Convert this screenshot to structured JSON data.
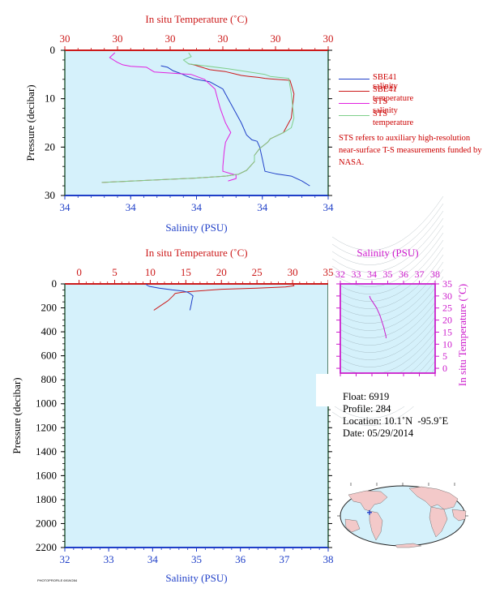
{
  "chart_data": [
    {
      "id": "upper",
      "type": "line",
      "top_axis_label": "In situ Temperature (˚C)",
      "top_ticks": [
        "30",
        "30",
        "30",
        "30",
        "30",
        "30"
      ],
      "bottom_axis_label": "Salinity (PSU)",
      "bottom_ticks": [
        "34",
        "34",
        "34",
        "34",
        "34"
      ],
      "ylabel": "Pressure (decibar)",
      "y_ticks": [
        "0",
        "10",
        "20",
        "30"
      ],
      "ylim": [
        30,
        0
      ],
      "xlim_fraction": [
        0,
        1
      ],
      "series": [
        {
          "name": "SBE41 salinity",
          "axis": "bottom",
          "color": "#1f3fc8",
          "x": [
            0.365,
            0.39,
            0.41,
            0.44,
            0.46,
            0.49,
            0.55,
            0.6,
            0.62,
            0.65,
            0.67,
            0.69,
            0.71,
            0.73,
            0.74,
            0.75,
            0.76,
            0.8,
            0.86,
            0.9,
            0.93
          ],
          "y": [
            3.2,
            3.5,
            4.2,
            4.8,
            5.3,
            5.9,
            6.5,
            8.0,
            10.0,
            13.0,
            15.0,
            17.5,
            18.5,
            18.8,
            20.0,
            22.5,
            25.0,
            25.5,
            26.0,
            27.0,
            28.0
          ]
        },
        {
          "name": "SBE41 temperature",
          "axis": "top",
          "color": "#cc1a1a",
          "x": [
            0.47,
            0.49,
            0.52,
            0.55,
            0.58,
            0.61,
            0.64,
            0.67,
            0.7,
            0.735,
            0.76,
            0.78,
            0.855,
            0.87,
            0.86,
            0.83,
            0.78,
            0.77,
            0.74,
            0.72,
            0.72,
            0.69,
            0.66,
            0.61,
            0.5,
            0.3,
            0.14
          ],
          "y": [
            2.8,
            3.0,
            3.5,
            4.0,
            4.2,
            4.4,
            4.8,
            5.2,
            5.4,
            5.6,
            5.8,
            5.9,
            6.2,
            9.0,
            14.0,
            17.0,
            18.3,
            19.0,
            20.3,
            21.7,
            23.0,
            24.8,
            25.6,
            26.0,
            26.4,
            26.9,
            27.3
          ]
        },
        {
          "name": "STS salinity",
          "axis": "bottom",
          "color": "#e21fe0",
          "x": [
            0.19,
            0.17,
            0.2,
            0.22,
            0.25,
            0.31,
            0.34,
            0.48,
            0.53,
            0.57,
            0.58,
            0.59,
            0.6,
            0.61,
            0.62,
            0.63,
            0.61,
            0.605,
            0.6,
            0.6,
            0.65,
            0.65,
            0.62
          ],
          "y": [
            0.5,
            1.5,
            2.5,
            3.0,
            3.3,
            3.5,
            4.5,
            5.0,
            6.0,
            8.0,
            10.0,
            12.0,
            13.5,
            15.0,
            16.0,
            17.0,
            19.0,
            21.0,
            24.0,
            25.0,
            25.8,
            26.5,
            27.0
          ]
        },
        {
          "name": "STS temperature",
          "axis": "top",
          "color": "#7fcf8a",
          "x": [
            0.47,
            0.48,
            0.45,
            0.47,
            0.53,
            0.62,
            0.69,
            0.76,
            0.78,
            0.85,
            0.86,
            0.87,
            0.86,
            0.83,
            0.78,
            0.77,
            0.74,
            0.72,
            0.72,
            0.69,
            0.66,
            0.61,
            0.5,
            0.3,
            0.14
          ],
          "y": [
            0.5,
            1.3,
            2.0,
            2.8,
            3.2,
            3.8,
            4.4,
            5.0,
            5.4,
            5.8,
            9.0,
            14.0,
            16.0,
            17.0,
            18.3,
            19.0,
            20.3,
            21.7,
            23.0,
            24.8,
            25.6,
            26.0,
            26.4,
            26.9,
            27.3
          ]
        }
      ]
    },
    {
      "id": "lower",
      "type": "line",
      "top_axis_label": "In situ Temperature (˚C)",
      "top_ticks": [
        "0",
        "5",
        "10",
        "15",
        "20",
        "25",
        "30",
        "35"
      ],
      "xlim_top": [
        -2,
        35
      ],
      "bottom_axis_label": "Salinity (PSU)",
      "bottom_ticks": [
        "32",
        "33",
        "34",
        "35",
        "36",
        "37",
        "38"
      ],
      "xlim_bottom": [
        32,
        38
      ],
      "ylabel": "Pressure (decibar)",
      "y_ticks": [
        "0",
        "200",
        "400",
        "600",
        "800",
        "1000",
        "1200",
        "1400",
        "1600",
        "1800",
        "2000",
        "2200"
      ],
      "ylim": [
        2200,
        0
      ],
      "series": [
        {
          "name": "temperature",
          "axis": "top",
          "color": "#cc1a1a",
          "x": [
            30.0,
            30.2,
            29.0,
            25.0,
            20.0,
            16.5,
            14.5,
            13.5,
            13.2,
            12.5,
            11.5,
            10.5
          ],
          "y": [
            0,
            15,
            25,
            35,
            45,
            60,
            70,
            80,
            100,
            140,
            180,
            220
          ]
        },
        {
          "name": "salinity",
          "axis": "bottom",
          "color": "#1f3fc8",
          "x": [
            33.85,
            33.87,
            33.92,
            34.15,
            34.45,
            34.7,
            34.8,
            34.87,
            34.92,
            34.9,
            34.88,
            34.85
          ],
          "y": [
            0,
            10,
            20,
            35,
            50,
            60,
            70,
            85,
            100,
            130,
            170,
            220
          ]
        }
      ]
    },
    {
      "id": "ts-diagram",
      "type": "scatter",
      "top_axis_label": "Salinity (PSU)",
      "x_ticks": [
        "32",
        "33",
        "34",
        "35",
        "36",
        "37",
        "38"
      ],
      "xlim": [
        32,
        38
      ],
      "right_axis_label": "In situ Temperature (˚C)",
      "y_ticks": [
        "0",
        "5",
        "10",
        "15",
        "20",
        "25",
        "30",
        "35"
      ],
      "ylim": [
        -2,
        35
      ],
      "series": [
        {
          "name": "profile",
          "color": "#cc1acc",
          "x": [
            33.85,
            33.9,
            34.1,
            34.3,
            34.5,
            34.65,
            34.75,
            34.82,
            34.88,
            34.9
          ],
          "y": [
            30.0,
            29.0,
            27.0,
            25.0,
            22.0,
            19.0,
            17.0,
            15.0,
            13.5,
            12.5
          ]
        }
      ]
    },
    {
      "id": "map",
      "type": "scatter",
      "marker_label": "float position",
      "lat": 10.1,
      "lon": -95.9
    }
  ],
  "legend": [
    {
      "label": "SBE41 salinity",
      "color": "#1f3fc8"
    },
    {
      "label": "SBE41 temperature",
      "color": "#cc1a1a"
    },
    {
      "label": "STS salinity",
      "color": "#e21fe0"
    },
    {
      "label": "STS temperature",
      "color": "#7fcf8a"
    }
  ],
  "note": "STS refers to auxiliary high-resolution near-surface T-S measurements funded by NASA.",
  "info": {
    "float_label": "Float:",
    "float_value": "6919",
    "profile_label": "Profile:",
    "profile_value": "284",
    "location_label": "Location:",
    "location_value": "10.1˚N  -95.9˚E",
    "date_label": "Date:",
    "date_value": "05/29/2014"
  },
  "footer_tag": "PHOTOPROFILE 6919/284",
  "colors": {
    "plot_bg": "#d5f1fb",
    "axis_red": "#cc1a1a",
    "axis_blue": "#1f3fc8",
    "axis_green": "#2e5e3e",
    "axis_magenta": "#cc1acc",
    "land": "#f3c9c9",
    "ocean": "#d5f1fb"
  }
}
